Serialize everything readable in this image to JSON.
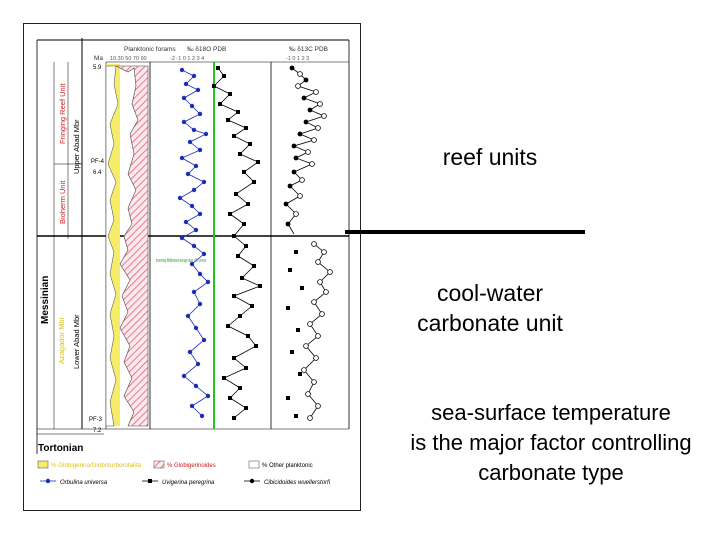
{
  "figure": {
    "header_plank": "Planktonic forams",
    "header_d18o_pdb": "‰ δ18O PDB",
    "header_d13c_pdb": "‰ δ13C PDB",
    "ma_label": "Ma",
    "age_top": "5.9",
    "age_mid": "6.4",
    "age_bottom": "7.2",
    "pf_upper": "PF-4",
    "pf_lower": "PF-3",
    "stage_messinian": "Messinian",
    "stage_tortonian": "Tortonian",
    "unit_fringing_reef": "Fringing Reef Unit",
    "unit_bioherm": "Bioherm Unit",
    "unit_azagador": "Azagador Mbr",
    "member_upper": "Upper Abad Mbr",
    "member_lower": "Lower Abad Mbr",
    "marker_note": "present-day Mediterranean average values of O. universa",
    "legend": {
      "globigerina": "% Globigerina/Globoturborotalita",
      "globigerinoides": "% Globigerinoides",
      "other": "% Other planktonic",
      "orbulina": "Orbulina universa",
      "uvigerina": "Uvigerina peregrina",
      "cibicidoides": "Cibicidoides wuellerstorfi"
    }
  },
  "labels": {
    "reef": "reef units",
    "cool_line1": "cool-water",
    "cool_line2": "carbonate unit",
    "sst_line1": "sea-surface temperature",
    "sst_line2": "is the major factor controlling",
    "sst_line3": "carbonate type"
  },
  "colors": {
    "blue_dots": "#1a2fb5",
    "green_line": "#22c422",
    "pink_hatch": "#e0607a",
    "yellow_fill": "#f5ec6a",
    "unit_text": "#c81e1e"
  }
}
